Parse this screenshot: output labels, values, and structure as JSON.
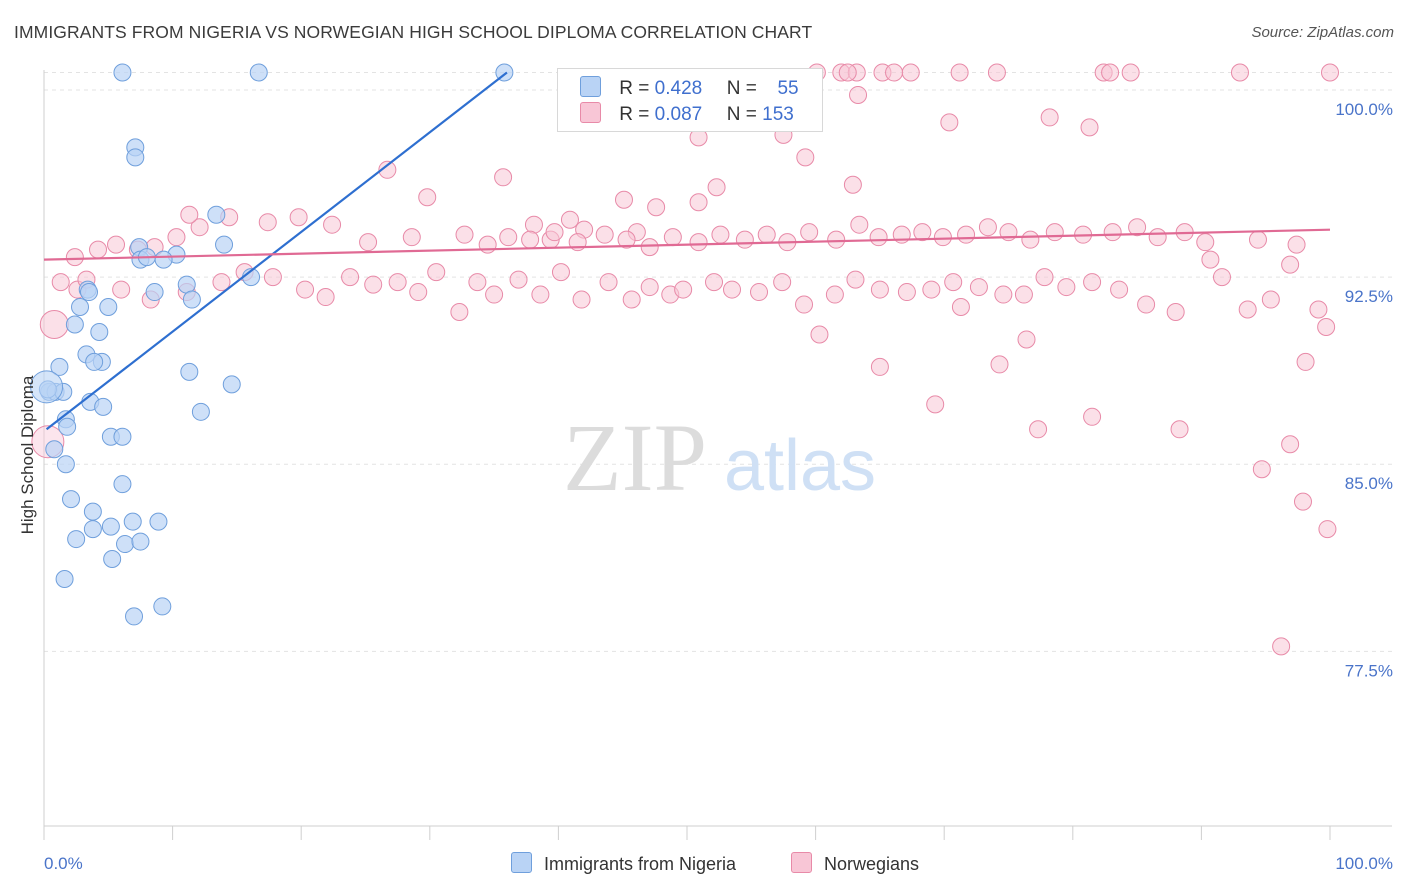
{
  "header": {
    "title": "IMMIGRANTS FROM NIGERIA VS NORWEGIAN HIGH SCHOOL DIPLOMA CORRELATION CHART",
    "source": "Source: ZipAtlas.com"
  },
  "legend": {
    "series1": {
      "r_label": "R =",
      "r_value": "0.428",
      "n_label": "N =",
      "n_value": "55"
    },
    "series2": {
      "r_label": "R =",
      "r_value": "0.087",
      "n_label": "N =",
      "n_value": "153"
    }
  },
  "bottom_legend": {
    "series1": "Immigrants from Nigeria",
    "series2": "Norwegians"
  },
  "colors": {
    "blue_fill": "#b9d3f5",
    "blue_stroke": "#6f9fdc",
    "blue_line": "#2e6fd0",
    "pink_fill": "#f8c6d6",
    "pink_stroke": "#e88aa8",
    "pink_line": "#e06a94",
    "tick_text": "#4a74c9",
    "grid": "#e3e3e3"
  },
  "chart_data": {
    "type": "scatter",
    "title": "IMMIGRANTS FROM NIGERIA VS NORWEGIAN HIGH SCHOOL DIPLOMA CORRELATION CHART",
    "xlabel": "",
    "ylabel": "High School Diploma",
    "xlim": [
      0,
      100
    ],
    "ylim": [
      70.5,
      100.8
    ],
    "x_tick_labels": [
      "0.0%",
      "100.0%"
    ],
    "y_ticks": [
      100.0,
      92.5,
      85.0,
      77.5
    ],
    "y_tick_labels": [
      "100.0%",
      "92.5%",
      "85.0%",
      "77.5%"
    ],
    "grid": true,
    "legend_position": "top-center",
    "watermark": {
      "zip": "ZIP",
      "atlas": "atlas"
    },
    "series": [
      {
        "name": "Immigrants from Nigeria",
        "color": "#b9d3f5",
        "trend": {
          "x": [
            0.2,
            36.0
          ],
          "y": [
            86.4,
            100.7
          ]
        },
        "points": [
          [
            6.1,
            100.7
          ],
          [
            16.7,
            100.7
          ],
          [
            35.8,
            100.7
          ],
          [
            7.1,
            97.7
          ],
          [
            7.1,
            97.3
          ],
          [
            13.4,
            95.0
          ],
          [
            7.4,
            93.7
          ],
          [
            7.5,
            93.2
          ],
          [
            10.3,
            93.4
          ],
          [
            16.1,
            92.5
          ],
          [
            11.1,
            92.2
          ],
          [
            8.6,
            91.9
          ],
          [
            11.5,
            91.6
          ],
          [
            3.4,
            92.0
          ],
          [
            3.5,
            91.9
          ],
          [
            2.8,
            91.3
          ],
          [
            5.0,
            91.3
          ],
          [
            2.4,
            90.6
          ],
          [
            4.3,
            90.3
          ],
          [
            3.3,
            89.4
          ],
          [
            4.5,
            89.1
          ],
          [
            1.2,
            88.9
          ],
          [
            3.9,
            89.1
          ],
          [
            11.3,
            88.7
          ],
          [
            14.6,
            88.2
          ],
          [
            0.4,
            87.9
          ],
          [
            0.9,
            87.9
          ],
          [
            1.5,
            87.9
          ],
          [
            3.6,
            87.5
          ],
          [
            4.6,
            87.3
          ],
          [
            12.2,
            87.1
          ],
          [
            1.7,
            86.8
          ],
          [
            1.8,
            86.5
          ],
          [
            5.2,
            86.1
          ],
          [
            6.1,
            86.1
          ],
          [
            0.8,
            85.6
          ],
          [
            1.7,
            85.0
          ],
          [
            6.1,
            84.2
          ],
          [
            2.1,
            83.6
          ],
          [
            3.8,
            83.1
          ],
          [
            3.8,
            82.4
          ],
          [
            5.2,
            82.5
          ],
          [
            8.9,
            82.7
          ],
          [
            6.9,
            82.7
          ],
          [
            2.5,
            82.0
          ],
          [
            6.3,
            81.8
          ],
          [
            7.5,
            81.9
          ],
          [
            5.3,
            81.2
          ],
          [
            1.6,
            80.4
          ],
          [
            9.2,
            79.3
          ],
          [
            7.0,
            78.9
          ],
          [
            0.3,
            88.0
          ],
          [
            14.0,
            93.8
          ],
          [
            8.0,
            93.3
          ],
          [
            9.3,
            93.2
          ]
        ]
      },
      {
        "name": "Norwegians",
        "color": "#f8c6d6",
        "trend": {
          "x": [
            0.0,
            100.0
          ],
          "y": [
            93.2,
            94.4
          ]
        },
        "points": [
          [
            60.1,
            100.7
          ],
          [
            62.0,
            100.7
          ],
          [
            63.2,
            100.7
          ],
          [
            62.5,
            100.7
          ],
          [
            65.2,
            100.7
          ],
          [
            66.1,
            100.7
          ],
          [
            67.4,
            100.7
          ],
          [
            71.2,
            100.7
          ],
          [
            74.1,
            100.7
          ],
          [
            82.4,
            100.7
          ],
          [
            82.9,
            100.7
          ],
          [
            84.5,
            100.7
          ],
          [
            93.0,
            100.7
          ],
          [
            100.0,
            100.7
          ],
          [
            63.3,
            99.8
          ],
          [
            70.4,
            98.7
          ],
          [
            78.2,
            98.9
          ],
          [
            81.3,
            98.5
          ],
          [
            50.9,
            98.1
          ],
          [
            57.5,
            98.2
          ],
          [
            59.2,
            97.3
          ],
          [
            52.3,
            96.1
          ],
          [
            62.9,
            96.2
          ],
          [
            26.7,
            96.8
          ],
          [
            29.8,
            95.7
          ],
          [
            35.7,
            96.5
          ],
          [
            45.1,
            95.6
          ],
          [
            47.6,
            95.3
          ],
          [
            50.9,
            95.5
          ],
          [
            40.9,
            94.8
          ],
          [
            38.1,
            94.6
          ],
          [
            42.0,
            94.4
          ],
          [
            46.1,
            94.3
          ],
          [
            39.4,
            94.0
          ],
          [
            28.6,
            94.1
          ],
          [
            25.2,
            93.9
          ],
          [
            22.4,
            94.6
          ],
          [
            19.8,
            94.9
          ],
          [
            17.4,
            94.7
          ],
          [
            14.4,
            94.9
          ],
          [
            12.1,
            94.5
          ],
          [
            11.3,
            95.0
          ],
          [
            10.3,
            94.1
          ],
          [
            8.6,
            93.7
          ],
          [
            7.3,
            93.6
          ],
          [
            5.6,
            93.8
          ],
          [
            4.2,
            93.6
          ],
          [
            2.4,
            93.3
          ],
          [
            2.6,
            92.0
          ],
          [
            1.3,
            92.3
          ],
          [
            3.3,
            92.4
          ],
          [
            6.0,
            92.0
          ],
          [
            8.3,
            91.6
          ],
          [
            11.1,
            91.9
          ],
          [
            13.8,
            92.3
          ],
          [
            15.6,
            92.7
          ],
          [
            17.8,
            92.5
          ],
          [
            20.3,
            92.0
          ],
          [
            21.9,
            91.7
          ],
          [
            23.8,
            92.5
          ],
          [
            25.6,
            92.2
          ],
          [
            27.5,
            92.3
          ],
          [
            29.1,
            91.9
          ],
          [
            30.5,
            92.7
          ],
          [
            32.3,
            91.1
          ],
          [
            33.7,
            92.3
          ],
          [
            35.0,
            91.8
          ],
          [
            36.9,
            92.4
          ],
          [
            38.6,
            91.8
          ],
          [
            40.2,
            92.7
          ],
          [
            41.8,
            91.6
          ],
          [
            43.9,
            92.3
          ],
          [
            45.7,
            91.6
          ],
          [
            47.1,
            92.1
          ],
          [
            48.7,
            91.8
          ],
          [
            49.7,
            92.0
          ],
          [
            52.1,
            92.3
          ],
          [
            53.5,
            92.0
          ],
          [
            55.6,
            91.9
          ],
          [
            57.4,
            92.3
          ],
          [
            59.1,
            91.4
          ],
          [
            61.5,
            91.8
          ],
          [
            63.1,
            92.4
          ],
          [
            65.0,
            92.0
          ],
          [
            67.1,
            91.9
          ],
          [
            69.0,
            92.0
          ],
          [
            70.7,
            92.3
          ],
          [
            71.3,
            91.3
          ],
          [
            72.7,
            92.1
          ],
          [
            74.6,
            91.8
          ],
          [
            76.2,
            91.8
          ],
          [
            77.8,
            92.5
          ],
          [
            79.5,
            92.1
          ],
          [
            81.5,
            92.3
          ],
          [
            83.6,
            92.0
          ],
          [
            85.7,
            91.4
          ],
          [
            88.0,
            91.1
          ],
          [
            90.7,
            93.2
          ],
          [
            91.6,
            92.5
          ],
          [
            93.6,
            91.2
          ],
          [
            95.4,
            91.6
          ],
          [
            96.9,
            93.0
          ],
          [
            98.1,
            89.1
          ],
          [
            99.1,
            91.2
          ],
          [
            99.7,
            90.5
          ],
          [
            60.3,
            90.2
          ],
          [
            76.4,
            90.0
          ],
          [
            74.3,
            89.0
          ],
          [
            65.0,
            88.9
          ],
          [
            69.3,
            87.4
          ],
          [
            77.3,
            86.4
          ],
          [
            81.5,
            86.9
          ],
          [
            88.3,
            86.4
          ],
          [
            94.7,
            84.8
          ],
          [
            96.9,
            85.8
          ],
          [
            97.9,
            83.5
          ],
          [
            99.8,
            82.4
          ],
          [
            96.2,
            77.7
          ],
          [
            94.4,
            94.0
          ],
          [
            97.4,
            93.8
          ],
          [
            90.3,
            93.9
          ],
          [
            88.7,
            94.3
          ],
          [
            86.6,
            94.1
          ],
          [
            85.0,
            94.5
          ],
          [
            83.1,
            94.3
          ],
          [
            80.8,
            94.2
          ],
          [
            78.6,
            94.3
          ],
          [
            76.7,
            94.0
          ],
          [
            75.0,
            94.3
          ],
          [
            73.4,
            94.5
          ],
          [
            71.7,
            94.2
          ],
          [
            69.9,
            94.1
          ],
          [
            68.3,
            94.3
          ],
          [
            66.7,
            94.2
          ],
          [
            64.9,
            94.1
          ],
          [
            63.4,
            94.6
          ],
          [
            61.6,
            94.0
          ],
          [
            59.5,
            94.3
          ],
          [
            57.8,
            93.9
          ],
          [
            56.2,
            94.2
          ],
          [
            54.5,
            94.0
          ],
          [
            52.6,
            94.2
          ],
          [
            50.9,
            93.9
          ],
          [
            48.9,
            94.1
          ],
          [
            47.1,
            93.7
          ],
          [
            45.3,
            94.0
          ],
          [
            43.6,
            94.2
          ],
          [
            41.5,
            93.9
          ],
          [
            39.7,
            94.3
          ],
          [
            37.8,
            94.0
          ],
          [
            36.1,
            94.1
          ],
          [
            34.5,
            93.8
          ],
          [
            32.7,
            94.2
          ]
        ]
      }
    ]
  }
}
